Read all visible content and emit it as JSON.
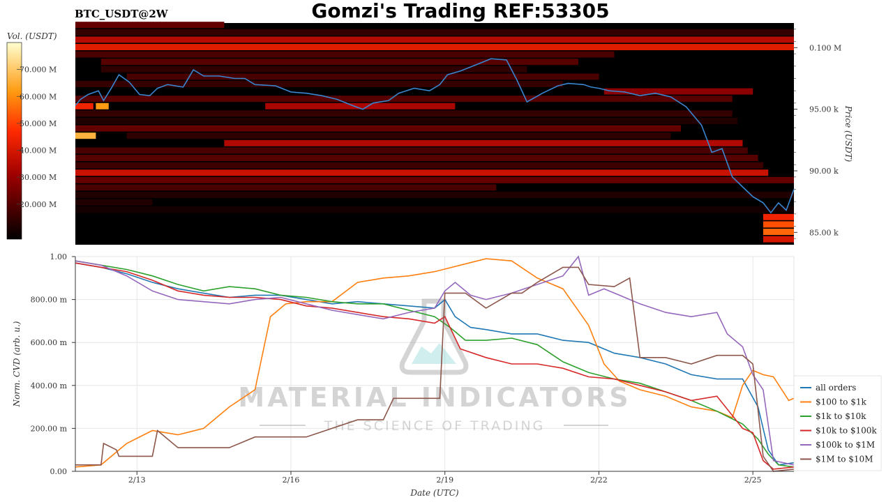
{
  "header": {
    "title": "Gomzi's Trading REF:53305",
    "symbol": "BTC_USDT@2W"
  },
  "watermark": {
    "line1": "MATERIAL INDICATORS",
    "line2": "THE SCIENCE OF TRADING"
  },
  "colors": {
    "price_line": "#3b86d1",
    "heatmap_bg": "#000000",
    "grid": "#e6e6e6"
  },
  "chart_data": [
    {
      "type": "heatmap",
      "colorbar_label": "Vol. (USDT)",
      "colorbar_ticks": [
        "70.000 M",
        "60.000 M",
        "50.000 M",
        "40.000 M",
        "30.000 M",
        "20.000 M"
      ],
      "colorbar_values": [
        70,
        60,
        50,
        40,
        30,
        20
      ],
      "colorbar_range": [
        7,
        80
      ],
      "ylabel": "Price (USDT)",
      "y_ticks": [
        "0.100 M",
        "95.00 k",
        "90.00 k",
        "85.00 k"
      ],
      "y_tick_values": [
        100000,
        95000,
        90000,
        85000
      ],
      "ylim": [
        84000,
        102000
      ],
      "xlim": [
        0,
        14
      ],
      "price_series": {
        "x": [
          0,
          0.1,
          0.25,
          0.45,
          0.55,
          0.7,
          0.85,
          1.05,
          1.25,
          1.45,
          1.6,
          1.8,
          2.1,
          2.3,
          2.5,
          2.8,
          3.1,
          3.3,
          3.5,
          3.9,
          4.2,
          4.5,
          4.8,
          5.1,
          5.4,
          5.6,
          5.8,
          6.1,
          6.3,
          6.6,
          6.9,
          7.1,
          7.25,
          7.5,
          7.8,
          8.1,
          8.4,
          8.6,
          8.8,
          9.1,
          9.4,
          9.6,
          9.9,
          10.05,
          10.2,
          10.4,
          10.7,
          11.0,
          11.3,
          11.6,
          11.9,
          12.2,
          12.4,
          12.6,
          12.8,
          13.0,
          13.2,
          13.4,
          13.55,
          13.7,
          13.85,
          14.0
        ],
        "y": [
          95300,
          95800,
          96200,
          96500,
          95700,
          96700,
          97800,
          97200,
          96200,
          96100,
          96700,
          97000,
          96800,
          98200,
          97700,
          97700,
          97500,
          97500,
          97000,
          96900,
          96400,
          96300,
          96100,
          95800,
          95300,
          95000,
          95500,
          95700,
          96300,
          96700,
          96500,
          97000,
          97800,
          98100,
          98600,
          99100,
          99000,
          97400,
          95600,
          96300,
          96900,
          97100,
          97000,
          96800,
          96700,
          96500,
          96400,
          96100,
          96300,
          96000,
          95200,
          93700,
          91500,
          91800,
          89500,
          88700,
          87900,
          87400,
          86600,
          87400,
          86800,
          88500
        ]
      },
      "bands": [
        {
          "price": 101800,
          "start": 0.0,
          "end": 2.9,
          "level": 22
        },
        {
          "price": 101200,
          "start": 0.0,
          "end": 14.0,
          "level": 15
        },
        {
          "price": 100600,
          "start": 0.0,
          "end": 14.0,
          "level": 35
        },
        {
          "price": 100000,
          "start": 0.0,
          "end": 14.0,
          "level": 42
        },
        {
          "price": 99400,
          "start": 0.0,
          "end": 10.5,
          "level": 18
        },
        {
          "price": 98800,
          "start": 0.5,
          "end": 9.8,
          "level": 20
        },
        {
          "price": 98200,
          "start": 0.5,
          "end": 8.8,
          "level": 14
        },
        {
          "price": 97600,
          "start": 1.0,
          "end": 10.2,
          "level": 18
        },
        {
          "price": 97000,
          "start": 0.0,
          "end": 9.5,
          "level": 15
        },
        {
          "price": 96400,
          "start": 10.3,
          "end": 13.2,
          "level": 28
        },
        {
          "price": 95800,
          "start": 0.0,
          "end": 12.8,
          "level": 20
        },
        {
          "price": 95200,
          "start": 0.0,
          "end": 0.35,
          "level": 45
        },
        {
          "price": 95200,
          "start": 0.4,
          "end": 0.65,
          "level": 62
        },
        {
          "price": 95200,
          "start": 3.7,
          "end": 7.4,
          "level": 33
        },
        {
          "price": 94600,
          "start": 0.0,
          "end": 12.8,
          "level": 15
        },
        {
          "price": 94000,
          "start": 0.0,
          "end": 12.9,
          "level": 12
        },
        {
          "price": 93400,
          "start": 0.0,
          "end": 11.8,
          "level": 22
        },
        {
          "price": 92800,
          "start": 0.0,
          "end": 0.4,
          "level": 66
        },
        {
          "price": 92800,
          "start": 1.0,
          "end": 11.6,
          "level": 14
        },
        {
          "price": 92200,
          "start": 2.9,
          "end": 13.0,
          "level": 34
        },
        {
          "price": 91600,
          "start": 0.0,
          "end": 13.1,
          "level": 18
        },
        {
          "price": 91000,
          "start": 0.0,
          "end": 13.3,
          "level": 20
        },
        {
          "price": 90400,
          "start": 0.0,
          "end": 13.4,
          "level": 16
        },
        {
          "price": 89800,
          "start": 0.0,
          "end": 13.5,
          "level": 38
        },
        {
          "price": 89200,
          "start": 0.0,
          "end": 14.0,
          "level": 22
        },
        {
          "price": 88600,
          "start": 0.0,
          "end": 8.2,
          "level": 18
        },
        {
          "price": 88000,
          "start": 0.0,
          "end": 14.0,
          "level": 12
        },
        {
          "price": 87400,
          "start": 0.0,
          "end": 1.5,
          "level": 12
        },
        {
          "price": 86800,
          "start": 0.0,
          "end": 14.0,
          "level": 10
        },
        {
          "price": 86200,
          "start": 13.4,
          "end": 14.0,
          "level": 45
        },
        {
          "price": 85600,
          "start": 13.4,
          "end": 14.0,
          "level": 52
        },
        {
          "price": 85000,
          "start": 13.4,
          "end": 14.0,
          "level": 55
        },
        {
          "price": 84400,
          "start": 13.4,
          "end": 14.0,
          "level": 40
        }
      ]
    },
    {
      "type": "line",
      "xlabel": "Date (UTC)",
      "ylabel": "Norm. CVD (arb. u.)",
      "x_ticks": [
        "2/13",
        "2/16",
        "2/19",
        "2/22",
        "2/25"
      ],
      "x_tick_values": [
        1.2,
        4.2,
        7.2,
        10.2,
        13.2
      ],
      "y_ticks": [
        "1.00",
        "800.00 m",
        "600.00 m",
        "400.00 m",
        "200.00 m",
        "0.00"
      ],
      "y_tick_values": [
        1.0,
        0.8,
        0.6,
        0.4,
        0.2,
        0.0
      ],
      "ylim": [
        0,
        1
      ],
      "xlim": [
        0,
        14
      ],
      "grid": true,
      "legend_position": "right",
      "series": [
        {
          "name": "all orders",
          "color": "#1f77b4",
          "x": [
            0,
            0.5,
            1.0,
            1.5,
            2.0,
            2.5,
            3.0,
            3.5,
            4.0,
            4.5,
            5.0,
            5.5,
            6.0,
            6.5,
            7.0,
            7.2,
            7.4,
            7.7,
            8.0,
            8.5,
            9.0,
            9.5,
            10.0,
            10.5,
            11.0,
            11.5,
            12.0,
            12.5,
            13.0,
            13.3,
            13.5,
            13.7,
            14.0
          ],
          "y": [
            0.97,
            0.95,
            0.92,
            0.88,
            0.85,
            0.83,
            0.81,
            0.82,
            0.82,
            0.8,
            0.78,
            0.79,
            0.78,
            0.77,
            0.76,
            0.8,
            0.72,
            0.67,
            0.66,
            0.64,
            0.64,
            0.61,
            0.6,
            0.55,
            0.53,
            0.5,
            0.45,
            0.43,
            0.43,
            0.3,
            0.1,
            0.03,
            0.04
          ]
        },
        {
          "name": "$100 to $1k",
          "color": "#ff7f0e",
          "x": [
            0,
            0.5,
            1.0,
            1.5,
            2.0,
            2.5,
            3.0,
            3.5,
            3.8,
            4.1,
            4.5,
            5.0,
            5.5,
            6.0,
            6.5,
            7.0,
            7.5,
            8.0,
            8.5,
            9.0,
            9.5,
            10.0,
            10.3,
            10.6,
            11.0,
            11.5,
            12.0,
            12.5,
            12.8,
            13.0,
            13.2,
            13.4,
            13.6,
            13.9,
            14.0
          ],
          "y": [
            0.02,
            0.03,
            0.13,
            0.19,
            0.17,
            0.2,
            0.3,
            0.38,
            0.72,
            0.78,
            0.79,
            0.79,
            0.88,
            0.9,
            0.91,
            0.93,
            0.96,
            0.99,
            0.98,
            0.9,
            0.85,
            0.68,
            0.5,
            0.42,
            0.38,
            0.35,
            0.3,
            0.28,
            0.25,
            0.4,
            0.47,
            0.45,
            0.44,
            0.33,
            0.34
          ]
        },
        {
          "name": "$1k to $10k",
          "color": "#2ca02c",
          "x": [
            0,
            0.5,
            1.0,
            1.5,
            2.0,
            2.5,
            3.0,
            3.5,
            4.0,
            4.5,
            5.0,
            5.5,
            6.0,
            6.5,
            7.0,
            7.3,
            7.6,
            8.0,
            8.5,
            9.0,
            9.5,
            10.0,
            10.5,
            11.0,
            11.5,
            12.0,
            12.5,
            13.0,
            13.3,
            13.5,
            13.7,
            14.0
          ],
          "y": [
            0.98,
            0.96,
            0.94,
            0.91,
            0.87,
            0.84,
            0.86,
            0.85,
            0.82,
            0.81,
            0.79,
            0.78,
            0.78,
            0.75,
            0.72,
            0.67,
            0.61,
            0.61,
            0.62,
            0.59,
            0.51,
            0.46,
            0.43,
            0.41,
            0.37,
            0.33,
            0.28,
            0.22,
            0.15,
            0.08,
            0.03,
            0.02
          ]
        },
        {
          "name": "$10k to $100k",
          "color": "#d62728",
          "x": [
            0,
            0.5,
            1.0,
            1.5,
            2.0,
            2.5,
            3.0,
            3.5,
            4.0,
            4.5,
            5.0,
            5.5,
            6.0,
            6.5,
            7.0,
            7.2,
            7.5,
            8.0,
            8.5,
            9.0,
            9.5,
            10.0,
            10.5,
            11.0,
            11.5,
            12.0,
            12.5,
            13.0,
            13.2,
            13.4,
            13.6,
            14.0
          ],
          "y": [
            0.97,
            0.95,
            0.93,
            0.89,
            0.84,
            0.82,
            0.81,
            0.81,
            0.8,
            0.77,
            0.76,
            0.74,
            0.72,
            0.71,
            0.69,
            0.72,
            0.57,
            0.53,
            0.5,
            0.5,
            0.48,
            0.44,
            0.43,
            0.4,
            0.37,
            0.33,
            0.35,
            0.2,
            0.18,
            0.05,
            0.01,
            0.02
          ]
        },
        {
          "name": "$100k to $1M",
          "color": "#9467bd",
          "x": [
            0,
            0.5,
            1.0,
            1.5,
            2.0,
            2.5,
            3.0,
            3.5,
            4.0,
            4.5,
            5.0,
            5.5,
            6.0,
            6.5,
            7.0,
            7.2,
            7.4,
            7.7,
            8.0,
            8.5,
            9.0,
            9.5,
            9.8,
            10.0,
            10.3,
            10.6,
            11.0,
            11.5,
            12.0,
            12.5,
            12.7,
            13.0,
            13.2,
            13.4,
            13.6,
            14.0
          ],
          "y": [
            0.98,
            0.96,
            0.91,
            0.84,
            0.8,
            0.79,
            0.78,
            0.8,
            0.81,
            0.78,
            0.75,
            0.73,
            0.71,
            0.74,
            0.76,
            0.84,
            0.88,
            0.82,
            0.8,
            0.83,
            0.87,
            0.91,
            1.0,
            0.82,
            0.85,
            0.82,
            0.78,
            0.74,
            0.72,
            0.74,
            0.64,
            0.58,
            0.45,
            0.38,
            0.05,
            0.03
          ]
        },
        {
          "name": "$1M to $10M",
          "color": "#8c564b",
          "x": [
            0,
            0.5,
            0.55,
            0.8,
            0.85,
            1.0,
            1.5,
            1.6,
            2.0,
            2.5,
            3.0,
            3.5,
            4.0,
            4.5,
            5.0,
            5.5,
            6.0,
            6.2,
            6.5,
            7.0,
            7.1,
            7.2,
            7.6,
            8.0,
            8.5,
            8.7,
            9.0,
            9.5,
            9.8,
            10.0,
            10.5,
            10.8,
            11.0,
            11.5,
            12.0,
            12.5,
            13.0,
            13.2,
            13.4,
            13.6,
            14.0
          ],
          "y": [
            0.03,
            0.03,
            0.13,
            0.1,
            0.07,
            0.07,
            0.07,
            0.19,
            0.11,
            0.11,
            0.11,
            0.16,
            0.16,
            0.16,
            0.2,
            0.24,
            0.24,
            0.34,
            0.34,
            0.34,
            0.34,
            0.83,
            0.83,
            0.76,
            0.83,
            0.83,
            0.88,
            0.95,
            0.95,
            0.87,
            0.86,
            0.9,
            0.53,
            0.53,
            0.5,
            0.54,
            0.54,
            0.5,
            0.07,
            0.0,
            0.01
          ]
        }
      ]
    }
  ]
}
